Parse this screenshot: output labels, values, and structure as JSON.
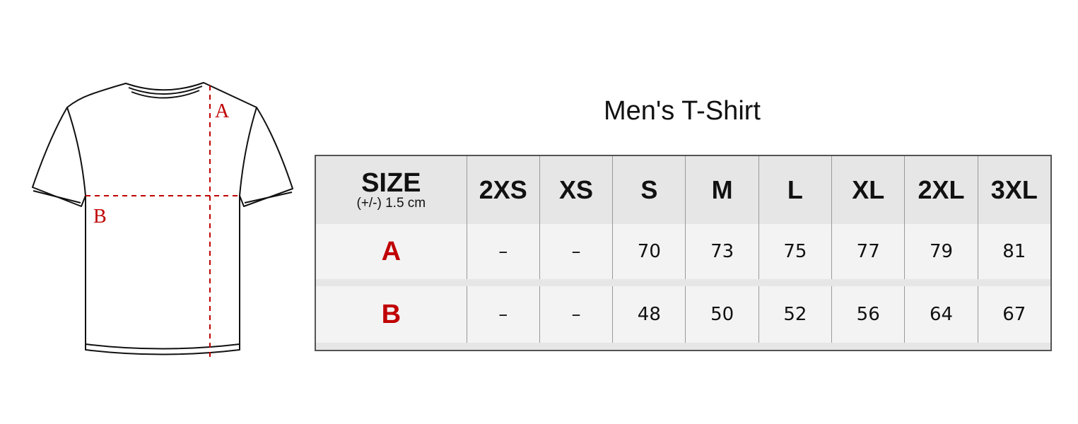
{
  "title": "Men's T-Shirt",
  "diagram": {
    "label_a": "A",
    "label_b": "B",
    "measure_color": "#c00000"
  },
  "table": {
    "header": {
      "size_label": "SIZE",
      "tolerance": "(+/-) 1.5 cm",
      "sizes": [
        "2XS",
        "XS",
        "S",
        "M",
        "L",
        "XL",
        "2XL",
        "3XL"
      ]
    },
    "rows": [
      {
        "label": "A",
        "values": [
          "–",
          "–",
          "70",
          "73",
          "75",
          "77",
          "79",
          "81"
        ]
      },
      {
        "label": "B",
        "values": [
          "–",
          "–",
          "48",
          "50",
          "52",
          "56",
          "64",
          "67"
        ]
      }
    ],
    "label_color": "#c00000"
  }
}
